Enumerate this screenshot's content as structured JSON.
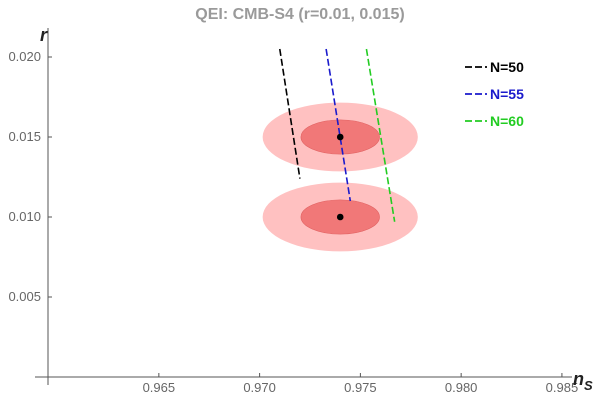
{
  "chart_data": {
    "type": "line",
    "title": "QEI: CMB-S4 (r=0.01, 0.015)",
    "xlabel": "n",
    "xlabel_sub": "S",
    "ylabel": "r",
    "xlim": [
      0.9595,
      0.9855
    ],
    "ylim": [
      0.0,
      0.021
    ],
    "x_ticks": [
      0.965,
      0.97,
      0.975,
      0.98,
      0.985
    ],
    "x_tick_labels": [
      "0.965",
      "0.970",
      "0.975",
      "0.980",
      "0.985"
    ],
    "y_ticks": [
      0.005,
      0.01,
      0.015,
      0.02
    ],
    "y_tick_labels": [
      "0.005",
      "0.010",
      "0.015",
      "0.020"
    ],
    "grid": false,
    "legend_position": "top-right",
    "series": [
      {
        "name": "N=50",
        "color": "#000000",
        "dash": "dashed",
        "x": [
          0.971,
          0.972
        ],
        "y": [
          0.0205,
          0.0124
        ]
      },
      {
        "name": "N=55",
        "color": "#1a1acc",
        "dash": "dashed",
        "x": [
          0.9733,
          0.9745
        ],
        "y": [
          0.0205,
          0.011
        ]
      },
      {
        "name": "N=60",
        "color": "#22cc22",
        "dash": "dashed",
        "x": [
          0.9753,
          0.9767
        ],
        "y": [
          0.0205,
          0.0097
        ]
      }
    ],
    "points": [
      {
        "x": 0.974,
        "y": 0.015,
        "color": "#000000"
      },
      {
        "x": 0.974,
        "y": 0.01,
        "color": "#000000"
      }
    ],
    "ellipses": [
      {
        "cx": 0.974,
        "cy": 0.015,
        "rx": 0.00385,
        "ry": 0.00215,
        "tilt_slope": -0.0006,
        "color": "#ffb6b6",
        "level": "outer"
      },
      {
        "cx": 0.974,
        "cy": 0.015,
        "rx": 0.00195,
        "ry": 0.00107,
        "tilt_slope": -0.0006,
        "color": "#f07070",
        "level": "inner"
      },
      {
        "cx": 0.974,
        "cy": 0.01,
        "rx": 0.00385,
        "ry": 0.00215,
        "tilt_slope": -0.0006,
        "color": "#ffb6b6",
        "level": "outer"
      },
      {
        "cx": 0.974,
        "cy": 0.01,
        "rx": 0.00195,
        "ry": 0.00107,
        "tilt_slope": -0.0006,
        "color": "#f07070",
        "level": "inner"
      }
    ]
  }
}
